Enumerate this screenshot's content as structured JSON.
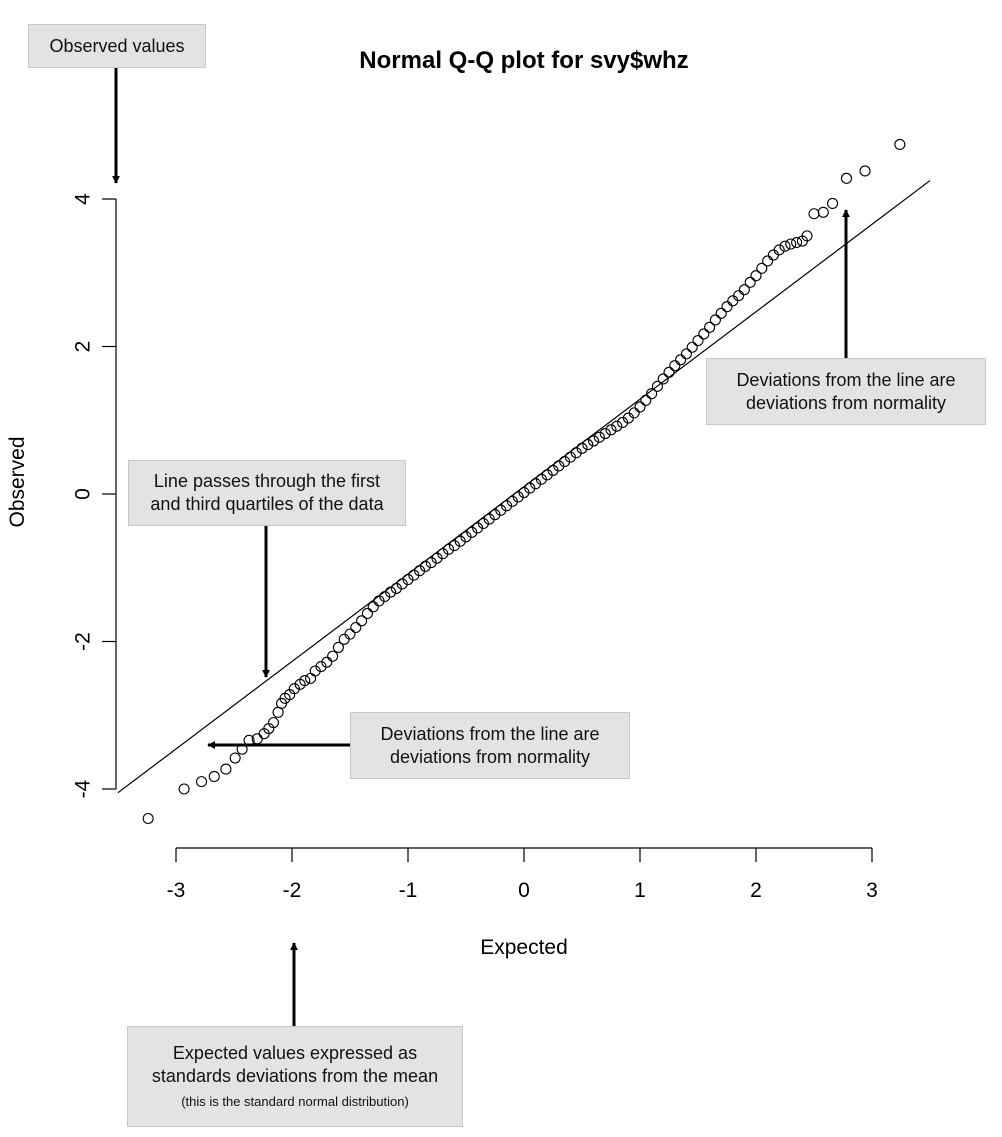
{
  "chart_data": {
    "type": "scatter",
    "title": "Normal Q-Q plot for svy$whz",
    "xlabel": "Expected",
    "ylabel": "Observed",
    "xlim": [
      -3,
      3
    ],
    "ylim": [
      -4,
      4
    ],
    "x_ticks": [
      "-3",
      "-2",
      "-1",
      "0",
      "1",
      "2",
      "3"
    ],
    "y_ticks": [
      "-4",
      "-2",
      "0",
      "2",
      "4"
    ],
    "grid": false,
    "reference_line": {
      "through": "first and third quartiles",
      "points": [
        [
          -3.5,
          -4.05
        ],
        [
          3.5,
          4.25
        ]
      ]
    },
    "points": [
      [
        -3.24,
        -4.4
      ],
      [
        -2.93,
        -4.0
      ],
      [
        -2.78,
        -3.9
      ],
      [
        -2.67,
        -3.83
      ],
      [
        -2.57,
        -3.73
      ],
      [
        -2.49,
        -3.58
      ],
      [
        -2.43,
        -3.46
      ],
      [
        -2.37,
        -3.34
      ],
      [
        -2.3,
        -3.32
      ],
      [
        -2.24,
        -3.25
      ],
      [
        -2.2,
        -3.18
      ],
      [
        -2.16,
        -3.1
      ],
      [
        -2.12,
        -2.96
      ],
      [
        -2.09,
        -2.84
      ],
      [
        -2.06,
        -2.77
      ],
      [
        -2.02,
        -2.72
      ],
      [
        -1.98,
        -2.64
      ],
      [
        -1.93,
        -2.58
      ],
      [
        -1.89,
        -2.53
      ],
      [
        -1.84,
        -2.5
      ],
      [
        -1.8,
        -2.4
      ],
      [
        -1.75,
        -2.34
      ],
      [
        -1.7,
        -2.28
      ],
      [
        -1.65,
        -2.2
      ],
      [
        -1.6,
        -2.08
      ],
      [
        -1.55,
        -1.97
      ],
      [
        -1.5,
        -1.9
      ],
      [
        -1.45,
        -1.81
      ],
      [
        -1.4,
        -1.72
      ],
      [
        -1.35,
        -1.62
      ],
      [
        -1.3,
        -1.53
      ],
      [
        -1.25,
        -1.45
      ],
      [
        -1.2,
        -1.39
      ],
      [
        -1.15,
        -1.33
      ],
      [
        -1.1,
        -1.28
      ],
      [
        -1.05,
        -1.22
      ],
      [
        -1.0,
        -1.16
      ],
      [
        -0.95,
        -1.1
      ],
      [
        -0.9,
        -1.04
      ],
      [
        -0.85,
        -0.98
      ],
      [
        -0.8,
        -0.93
      ],
      [
        -0.75,
        -0.87
      ],
      [
        -0.7,
        -0.81
      ],
      [
        -0.65,
        -0.75
      ],
      [
        -0.6,
        -0.7
      ],
      [
        -0.55,
        -0.64
      ],
      [
        -0.5,
        -0.58
      ],
      [
        -0.45,
        -0.52
      ],
      [
        -0.4,
        -0.46
      ],
      [
        -0.35,
        -0.4
      ],
      [
        -0.3,
        -0.34
      ],
      [
        -0.25,
        -0.28
      ],
      [
        -0.2,
        -0.22
      ],
      [
        -0.15,
        -0.16
      ],
      [
        -0.1,
        -0.1
      ],
      [
        -0.05,
        -0.04
      ],
      [
        0.0,
        0.02
      ],
      [
        0.05,
        0.08
      ],
      [
        0.1,
        0.14
      ],
      [
        0.15,
        0.2
      ],
      [
        0.2,
        0.26
      ],
      [
        0.25,
        0.32
      ],
      [
        0.3,
        0.38
      ],
      [
        0.35,
        0.44
      ],
      [
        0.4,
        0.5
      ],
      [
        0.45,
        0.56
      ],
      [
        0.5,
        0.62
      ],
      [
        0.55,
        0.67
      ],
      [
        0.6,
        0.72
      ],
      [
        0.65,
        0.77
      ],
      [
        0.7,
        0.82
      ],
      [
        0.75,
        0.87
      ],
      [
        0.8,
        0.92
      ],
      [
        0.85,
        0.97
      ],
      [
        0.9,
        1.03
      ],
      [
        0.95,
        1.1
      ],
      [
        1.0,
        1.18
      ],
      [
        1.05,
        1.27
      ],
      [
        1.1,
        1.36
      ],
      [
        1.15,
        1.46
      ],
      [
        1.2,
        1.56
      ],
      [
        1.25,
        1.65
      ],
      [
        1.3,
        1.74
      ],
      [
        1.35,
        1.82
      ],
      [
        1.4,
        1.9
      ],
      [
        1.45,
        1.99
      ],
      [
        1.5,
        2.08
      ],
      [
        1.55,
        2.17
      ],
      [
        1.6,
        2.26
      ],
      [
        1.65,
        2.36
      ],
      [
        1.7,
        2.45
      ],
      [
        1.75,
        2.54
      ],
      [
        1.8,
        2.62
      ],
      [
        1.85,
        2.69
      ],
      [
        1.9,
        2.77
      ],
      [
        1.95,
        2.87
      ],
      [
        2.0,
        2.96
      ],
      [
        2.05,
        3.06
      ],
      [
        2.1,
        3.16
      ],
      [
        2.15,
        3.24
      ],
      [
        2.2,
        3.31
      ],
      [
        2.25,
        3.36
      ],
      [
        2.3,
        3.39
      ],
      [
        2.35,
        3.41
      ],
      [
        2.4,
        3.43
      ],
      [
        2.44,
        3.5
      ],
      [
        2.5,
        3.8
      ],
      [
        2.58,
        3.82
      ],
      [
        2.66,
        3.94
      ],
      [
        2.78,
        4.28
      ],
      [
        2.94,
        4.38
      ],
      [
        3.24,
        4.74
      ]
    ]
  },
  "callouts": {
    "observed": "Observed values",
    "line_quartiles": [
      "Line passes through the first",
      "and third quartiles of the data"
    ],
    "deviations_right": [
      "Deviations from the line are",
      "deviations from normality"
    ],
    "deviations_left": [
      "Deviations from the line are",
      "deviations from normality"
    ],
    "expected": [
      "Expected values expressed as",
      "standards deviations from the mean"
    ],
    "expected_note": "(this is the standard normal distribution)"
  }
}
